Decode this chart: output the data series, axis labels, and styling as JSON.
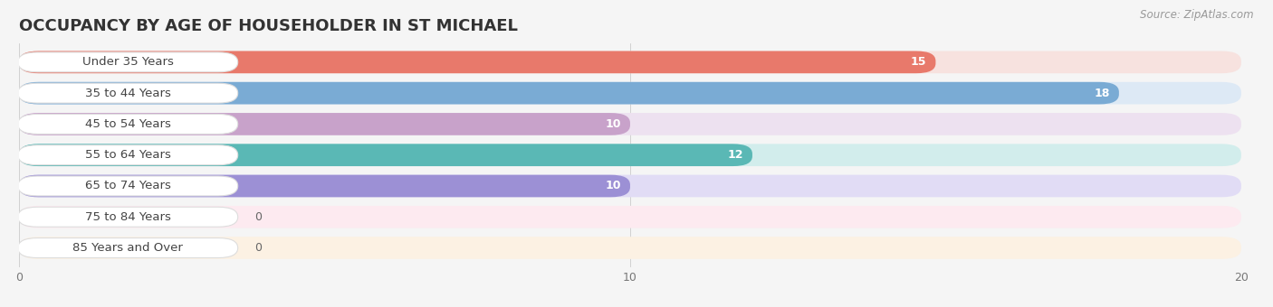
{
  "title": "OCCUPANCY BY AGE OF HOUSEHOLDER IN ST MICHAEL",
  "source": "Source: ZipAtlas.com",
  "categories": [
    "Under 35 Years",
    "35 to 44 Years",
    "45 to 54 Years",
    "55 to 64 Years",
    "65 to 74 Years",
    "75 to 84 Years",
    "85 Years and Over"
  ],
  "values": [
    15,
    18,
    10,
    12,
    10,
    0,
    0
  ],
  "bar_colors": [
    "#E8796B",
    "#7AABD4",
    "#C8A2CA",
    "#5AB8B5",
    "#9C90D5",
    "#F4A3B5",
    "#F6C9A3"
  ],
  "bar_bg_colors": [
    "#F7E2DF",
    "#DDE9F5",
    "#EDE1F0",
    "#D2EDEC",
    "#E1DCF5",
    "#FDEAF0",
    "#FCF1E3"
  ],
  "xlim": [
    0,
    20
  ],
  "xticks": [
    0,
    10,
    20
  ],
  "background_color": "#f5f5f5",
  "title_fontsize": 13,
  "label_fontsize": 9.5,
  "value_fontsize": 9
}
